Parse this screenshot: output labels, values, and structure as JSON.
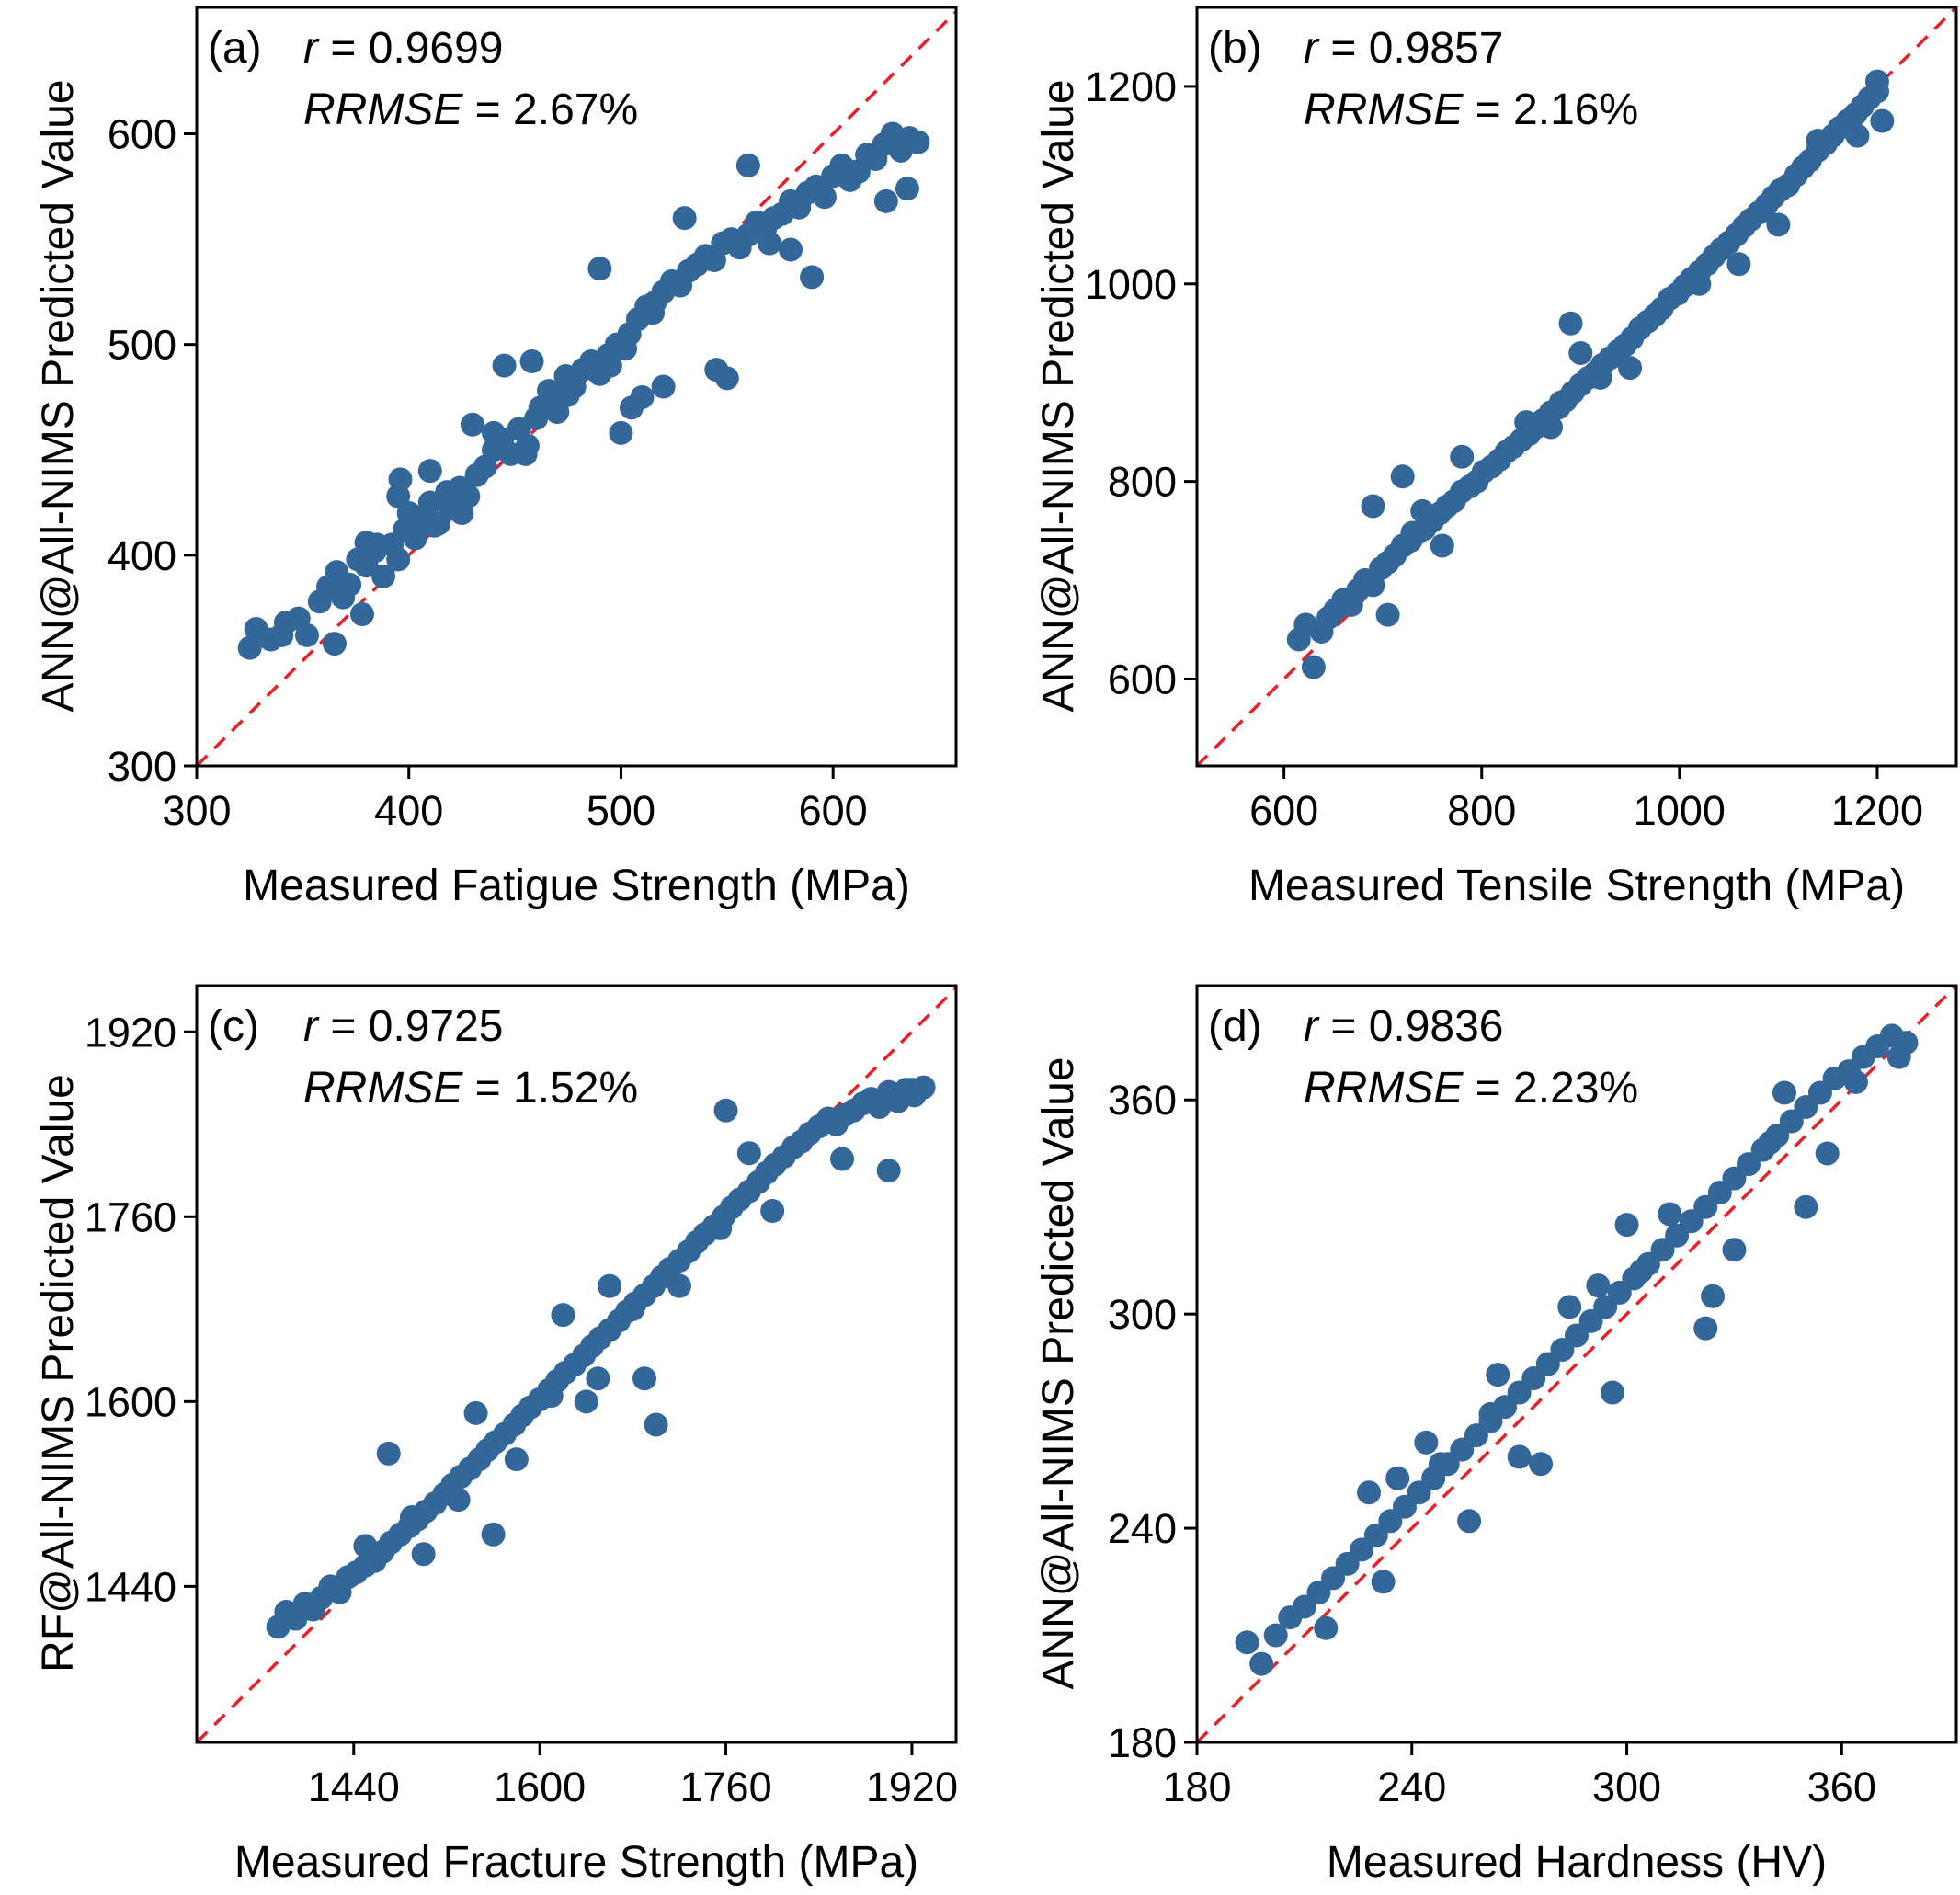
{
  "chart_data": [
    {
      "type": "scatter",
      "panel": "(a)",
      "stat_r_label": "r",
      "stat_r_value": "= 0.9699",
      "stat_e_label": "RRMSE",
      "stat_e_value": "= 2.67%",
      "xlabel": "Measured Fatigue Strength (MPa)",
      "ylabel": "ANN@All-NIMS Predicted Value",
      "xlim": [
        300,
        658
      ],
      "ylim": [
        300,
        660
      ],
      "xticks": [
        300,
        400,
        500,
        600
      ],
      "yticks": [
        300,
        400,
        500,
        600
      ],
      "xtick_labels": [
        "300",
        "400",
        "500",
        "600"
      ],
      "ytick_labels": [
        "300",
        "400",
        "500",
        "600"
      ],
      "reference_line": "y = x",
      "x": [
        325,
        328,
        335,
        340,
        342,
        348,
        358,
        362,
        366,
        369,
        372,
        376,
        380,
        384,
        388,
        392,
        395,
        398,
        400,
        403,
        406,
        410,
        414,
        418,
        420,
        424,
        428,
        432,
        436,
        440,
        444,
        448,
        452,
        456,
        460,
        462,
        466,
        470,
        474,
        478,
        482,
        486,
        490,
        494,
        498,
        502,
        504,
        508,
        512,
        516,
        520,
        524,
        528,
        532,
        536,
        540,
        544,
        548,
        552,
        556,
        560,
        564,
        568,
        572,
        576,
        580,
        584,
        588,
        592,
        596,
        600,
        604,
        608,
        612,
        616,
        620,
        624,
        628,
        632,
        636,
        640,
        490,
        500,
        505,
        510,
        520,
        545,
        550,
        470,
        458,
        445,
        430,
        412,
        396,
        385,
        378,
        365,
        352,
        560,
        570,
        580,
        590,
        610,
        625,
        635,
        530,
        515,
        495,
        475,
        455,
        440,
        425,
        410,
        395,
        380
      ],
      "y": [
        356,
        365,
        360,
        362,
        368,
        370,
        378,
        385,
        392,
        380,
        386,
        398,
        395,
        402,
        390,
        405,
        398,
        412,
        420,
        408,
        418,
        425,
        415,
        430,
        422,
        432,
        428,
        438,
        442,
        450,
        455,
        448,
        460,
        452,
        465,
        470,
        478,
        472,
        485,
        480,
        488,
        492,
        486,
        495,
        500,
        498,
        505,
        512,
        518,
        520,
        525,
        530,
        528,
        535,
        538,
        542,
        540,
        548,
        550,
        546,
        552,
        558,
        555,
        560,
        562,
        568,
        565,
        572,
        575,
        570,
        580,
        585,
        578,
        582,
        590,
        588,
        595,
        600,
        592,
        598,
        596,
        536,
        458,
        470,
        475,
        480,
        488,
        484,
        468,
        492,
        490,
        462,
        414,
        436,
        405,
        372,
        358,
        362,
        585,
        548,
        545,
        532,
        582,
        568,
        574,
        560,
        515,
        490,
        476,
        448,
        458,
        420,
        440,
        428,
        406
      ]
    },
    {
      "type": "scatter",
      "panel": "(b)",
      "stat_r_label": "r",
      "stat_r_value": "= 0.9857",
      "stat_e_label": "RRMSE",
      "stat_e_value": "= 2.16%",
      "xlabel": "Measured Tensile Strength (MPa)",
      "ylabel": "ANN@All-NIMS Predicted Value",
      "xlim": [
        512,
        1280
      ],
      "ylim": [
        512,
        1280
      ],
      "xticks": [
        600,
        800,
        1000,
        1200
      ],
      "yticks": [
        600,
        800,
        1000,
        1200
      ],
      "xtick_labels": [
        "600",
        "800",
        "1000",
        "1200"
      ],
      "ytick_labels": [
        "600",
        "800",
        "1000",
        "1200"
      ],
      "reference_line": "y = x",
      "x": [
        615,
        622,
        630,
        638,
        645,
        652,
        660,
        668,
        675,
        682,
        690,
        698,
        705,
        712,
        720,
        728,
        735,
        742,
        750,
        758,
        765,
        772,
        780,
        788,
        795,
        802,
        810,
        818,
        825,
        832,
        840,
        848,
        855,
        862,
        870,
        878,
        885,
        892,
        900,
        908,
        915,
        922,
        930,
        938,
        945,
        952,
        960,
        968,
        975,
        982,
        990,
        998,
        1005,
        1012,
        1020,
        1028,
        1035,
        1042,
        1050,
        1058,
        1065,
        1072,
        1080,
        1088,
        1095,
        1102,
        1110,
        1118,
        1125,
        1132,
        1140,
        1148,
        1155,
        1162,
        1170,
        1178,
        1185,
        1192,
        1200,
        1205,
        720,
        740,
        760,
        780,
        870,
        890,
        900,
        920,
        950,
        1020,
        1060,
        1100,
        1140,
        1180,
        1200,
        690,
        705,
        730,
        845,
        880
      ],
      "y": [
        640,
        655,
        612,
        648,
        662,
        670,
        680,
        675,
        690,
        700,
        695,
        712,
        718,
        725,
        735,
        740,
        748,
        752,
        760,
        768,
        775,
        780,
        790,
        795,
        800,
        810,
        815,
        822,
        830,
        835,
        842,
        848,
        855,
        862,
        870,
        875,
        882,
        890,
        898,
        905,
        910,
        918,
        925,
        932,
        938,
        945,
        955,
        962,
        968,
        975,
        985,
        990,
        998,
        1005,
        1012,
        1020,
        1028,
        1035,
        1042,
        1050,
        1058,
        1065,
        1072,
        1080,
        1088,
        1095,
        1100,
        1110,
        1118,
        1125,
        1135,
        1142,
        1150,
        1158,
        1165,
        1172,
        1180,
        1188,
        1195,
        1165,
        805,
        770,
        735,
        825,
        855,
        960,
        930,
        905,
        915,
        1000,
        1020,
        1060,
        1145,
        1150,
        1205,
        775,
        665,
        748,
        860,
        880
      ]
    },
    {
      "type": "scatter",
      "panel": "(c)",
      "stat_r_label": "r",
      "stat_r_value": "= 0.9725",
      "stat_e_label": "RRMSE",
      "stat_e_value": "= 1.52%",
      "xlabel": "Measured Fracture Strength (MPa)",
      "ylabel": "RF@All-NIMS Predicted Value",
      "xlim": [
        1305,
        1958
      ],
      "ylim": [
        1305,
        1960
      ],
      "xticks": [
        1440,
        1600,
        1760,
        1920
      ],
      "yticks": [
        1440,
        1600,
        1760,
        1920
      ],
      "xtick_labels": [
        "1440",
        "1600",
        "1760",
        "1920"
      ],
      "ytick_labels": [
        "1440",
        "1600",
        "1760",
        "1920"
      ],
      "reference_line": "y = x",
      "x": [
        1375,
        1382,
        1390,
        1398,
        1405,
        1412,
        1420,
        1428,
        1435,
        1442,
        1450,
        1458,
        1465,
        1472,
        1480,
        1488,
        1495,
        1502,
        1510,
        1518,
        1525,
        1532,
        1540,
        1548,
        1555,
        1562,
        1570,
        1578,
        1585,
        1592,
        1600,
        1608,
        1615,
        1622,
        1630,
        1638,
        1645,
        1652,
        1660,
        1668,
        1675,
        1682,
        1690,
        1698,
        1705,
        1712,
        1720,
        1728,
        1735,
        1742,
        1750,
        1758,
        1765,
        1772,
        1780,
        1788,
        1795,
        1802,
        1810,
        1818,
        1825,
        1832,
        1840,
        1848,
        1855,
        1862,
        1870,
        1878,
        1885,
        1892,
        1900,
        1908,
        1915,
        1922,
        1930,
        1470,
        1500,
        1545,
        1560,
        1610,
        1620,
        1650,
        1680,
        1690,
        1700,
        1720,
        1755,
        1760,
        1780,
        1800,
        1860,
        1900,
        1920,
        1660,
        1640,
        1580,
        1530,
        1490,
        1450
      ],
      "y": [
        1405,
        1418,
        1412,
        1425,
        1420,
        1430,
        1440,
        1435,
        1448,
        1452,
        1458,
        1462,
        1470,
        1478,
        1485,
        1492,
        1498,
        1505,
        1512,
        1520,
        1528,
        1535,
        1542,
        1550,
        1558,
        1565,
        1572,
        1580,
        1588,
        1595,
        1602,
        1610,
        1618,
        1625,
        1632,
        1640,
        1648,
        1655,
        1662,
        1670,
        1678,
        1685,
        1692,
        1700,
        1708,
        1715,
        1722,
        1730,
        1738,
        1745,
        1752,
        1760,
        1768,
        1775,
        1782,
        1790,
        1798,
        1805,
        1812,
        1820,
        1825,
        1832,
        1838,
        1845,
        1840,
        1848,
        1852,
        1858,
        1862,
        1855,
        1868,
        1860,
        1870,
        1865,
        1872,
        1555,
        1468,
        1590,
        1485,
        1605,
        1675,
        1620,
        1680,
        1620,
        1580,
        1700,
        1750,
        1852,
        1815,
        1765,
        1810,
        1800,
        1870,
        1700,
        1600,
        1550,
        1515,
        1500,
        1475
      ]
    },
    {
      "type": "scatter",
      "panel": "(d)",
      "stat_r_label": "r",
      "stat_r_value": "= 0.9836",
      "stat_e_label": "RRMSE",
      "stat_e_value": "= 2.23%",
      "xlabel": "Measured Hardness (HV)",
      "ylabel": "ANN@All-NIMS Predicted Value",
      "xlim": [
        180,
        392
      ],
      "ylim": [
        180,
        392
      ],
      "xticks": [
        180,
        240,
        300,
        360
      ],
      "yticks": [
        180,
        240,
        300,
        360
      ],
      "xtick_labels": [
        "180",
        "240",
        "300",
        "360"
      ],
      "ytick_labels": [
        "180",
        "240",
        "300",
        "360"
      ],
      "reference_line": "y = x",
      "x": [
        194,
        198,
        202,
        206,
        210,
        214,
        218,
        222,
        226,
        230,
        234,
        238,
        242,
        246,
        250,
        254,
        258,
        262,
        266,
        270,
        274,
        278,
        282,
        286,
        290,
        294,
        298,
        302,
        306,
        310,
        314,
        318,
        322,
        326,
        330,
        334,
        338,
        342,
        346,
        350,
        354,
        358,
        362,
        366,
        370,
        374,
        378,
        232,
        236,
        248,
        256,
        264,
        270,
        284,
        292,
        300,
        304,
        312,
        322,
        330,
        344,
        350,
        356,
        364,
        376,
        340,
        324,
        296,
        276,
        262,
        244,
        228,
        216
      ],
      "y": [
        208,
        202,
        210,
        215,
        218,
        222,
        226,
        230,
        234,
        238,
        242,
        246,
        250,
        254,
        258,
        262,
        266,
        270,
        274,
        278,
        282,
        286,
        290,
        294,
        298,
        302,
        306,
        310,
        314,
        318,
        322,
        326,
        330,
        334,
        338,
        342,
        346,
        350,
        354,
        358,
        362,
        366,
        368,
        372,
        375,
        378,
        376,
        225,
        254,
        258,
        242,
        283,
        260,
        302,
        308,
        325,
        312,
        328,
        296,
        318,
        362,
        330,
        345,
        365,
        372,
        348,
        305,
        278,
        258,
        272,
        264,
        250,
        212
      ]
    }
  ]
}
